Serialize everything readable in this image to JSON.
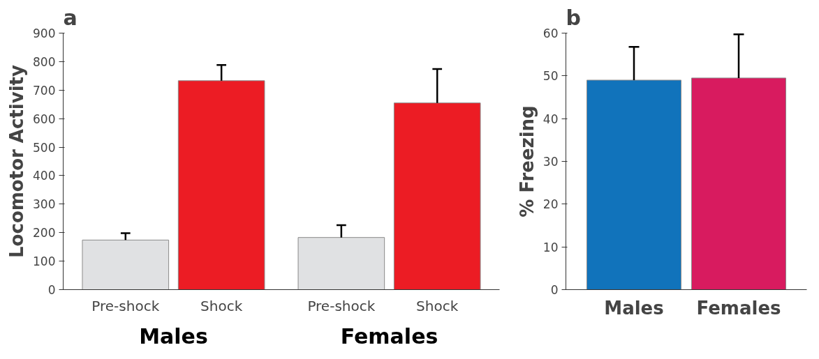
{
  "chart_data": [
    {
      "type": "bar",
      "title": "a",
      "ylabel": "Locomotor Activity",
      "categories": [
        "Pre-shock",
        "Shock",
        "Pre-shock",
        "Shock"
      ],
      "values": [
        174,
        733,
        183,
        655
      ],
      "colors": [
        "#e0e1e3",
        "#ec1c24",
        "#e0e1e3",
        "#ec1c24"
      ],
      "errors": [
        [
          174,
          198
        ],
        [
          733,
          788
        ],
        [
          183,
          226
        ],
        [
          655,
          774
        ]
      ],
      "annotations": [
        "Males",
        "Females"
      ],
      "ylim": [
        0,
        900
      ],
      "yticks": [
        0,
        100,
        200,
        300,
        400,
        500,
        600,
        700,
        800,
        900
      ],
      "grid": false
    },
    {
      "type": "bar",
      "title": "b",
      "ylabel": "% Freezing",
      "categories": [
        "Males",
        "Females"
      ],
      "values": [
        49,
        49.5
      ],
      "colors": [
        "#1173bb",
        "#d81b5f"
      ],
      "errors": [
        [
          49,
          56.8
        ],
        [
          49.5,
          59.7
        ]
      ],
      "ylim": [
        0,
        60
      ],
      "yticks": [
        0,
        10,
        20,
        30,
        40,
        50,
        60
      ],
      "grid": false
    }
  ]
}
